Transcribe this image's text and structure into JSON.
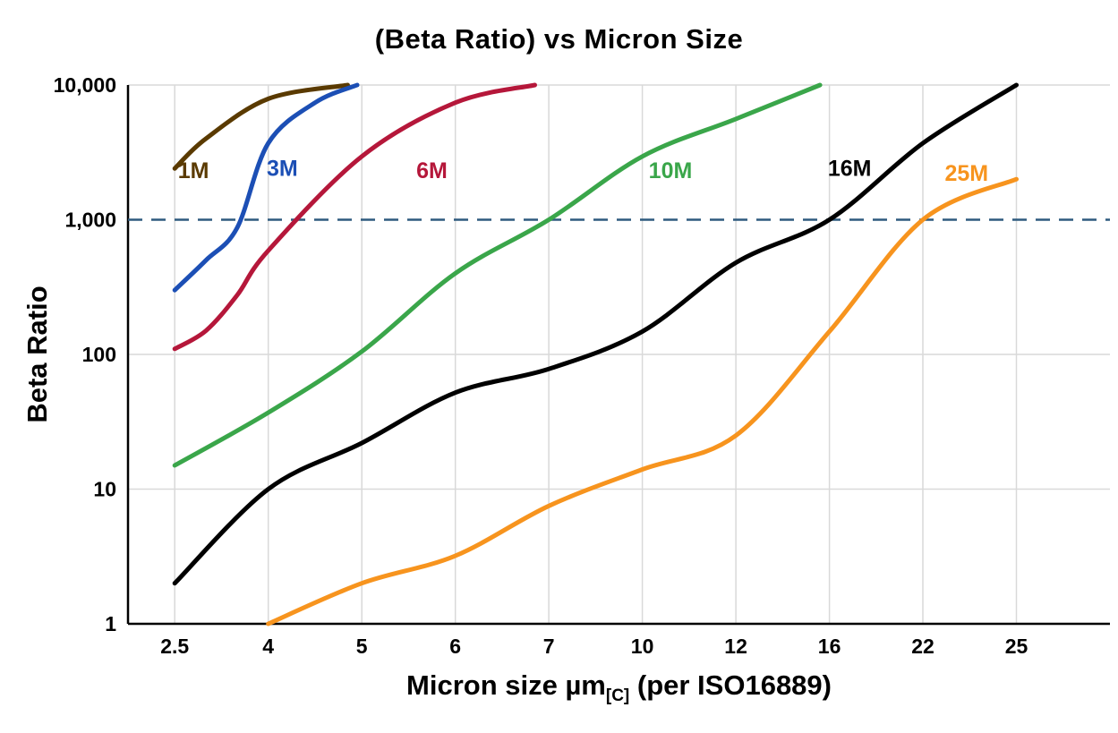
{
  "chart_data": {
    "type": "line",
    "title": "(Beta Ratio) vs Micron Size",
    "xlabel": {
      "pre": "Micron size µm",
      "sub": "[C]",
      "post": " (per ISO16889)"
    },
    "ylabel": "Beta Ratio",
    "x_scale": "categorical-equal-spacing",
    "y_scale": "log",
    "x_categories": [
      2.5,
      4,
      5,
      6,
      7,
      10,
      12,
      16,
      22,
      25
    ],
    "x_tick_labels": [
      "2.5",
      "4",
      "5",
      "6",
      "7",
      "10",
      "12",
      "16",
      "22",
      "25"
    ],
    "y_ticks": [
      {
        "value": 1,
        "label": "1"
      },
      {
        "value": 10,
        "label": "10"
      },
      {
        "value": 100,
        "label": "100"
      },
      {
        "value": 1000,
        "label": "1,000"
      },
      {
        "value": 10000,
        "label": "10,000"
      }
    ],
    "ylim": [
      1,
      10000
    ],
    "grid": true,
    "grid_color": "#d9d9d9",
    "axis_color": "#000000",
    "reference_line": {
      "y": 1000,
      "style": "dashed",
      "color": "#2e5a7e"
    },
    "series": [
      {
        "name": "1M",
        "color": "#5a3a00",
        "label_pos": {
          "x": 2.8,
          "y": 2300
        },
        "points": [
          [
            2.5,
            2400
          ],
          [
            3,
            4000
          ],
          [
            4,
            7900
          ],
          [
            4.85,
            10000
          ]
        ]
      },
      {
        "name": "3M",
        "color": "#1c4fb5",
        "label_pos": {
          "x": 4.15,
          "y": 2400
        },
        "points": [
          [
            2.5,
            300
          ],
          [
            3,
            500
          ],
          [
            3.5,
            870
          ],
          [
            4,
            3700
          ],
          [
            4.5,
            7400
          ],
          [
            4.95,
            10000
          ]
        ]
      },
      {
        "name": "6M",
        "color": "#b5173a",
        "label_pos": {
          "x": 5.75,
          "y": 2300
        },
        "points": [
          [
            2.5,
            110
          ],
          [
            3,
            150
          ],
          [
            3.5,
            275
          ],
          [
            4,
            590
          ],
          [
            5,
            2950
          ],
          [
            6,
            7400
          ],
          [
            6.85,
            10000
          ]
        ]
      },
      {
        "name": "10M",
        "color": "#3aa64a",
        "label_pos": {
          "x": 10.6,
          "y": 2300
        },
        "points": [
          [
            2.5,
            15
          ],
          [
            4,
            37
          ],
          [
            5,
            105
          ],
          [
            6,
            400
          ],
          [
            7,
            1000
          ],
          [
            10,
            2950
          ],
          [
            12,
            5600
          ],
          [
            15.6,
            10000
          ]
        ]
      },
      {
        "name": "16M",
        "color": "#000000",
        "label_pos": {
          "x": 17.3,
          "y": 2400
        },
        "points": [
          [
            2.5,
            2
          ],
          [
            4,
            10
          ],
          [
            5,
            22
          ],
          [
            6,
            52
          ],
          [
            7,
            78
          ],
          [
            10,
            148
          ],
          [
            12,
            480
          ],
          [
            16,
            1000
          ],
          [
            22,
            3700
          ],
          [
            25,
            10000
          ]
        ]
      },
      {
        "name": "25M",
        "color": "#f7941e",
        "label_pos": {
          "x": 23.4,
          "y": 2200
        },
        "points": [
          [
            4,
            1
          ],
          [
            5,
            2
          ],
          [
            6,
            3.2
          ],
          [
            7,
            7.5
          ],
          [
            10,
            14
          ],
          [
            12,
            25
          ],
          [
            16,
            148
          ],
          [
            22,
            1000
          ],
          [
            25,
            2000
          ]
        ]
      }
    ]
  }
}
